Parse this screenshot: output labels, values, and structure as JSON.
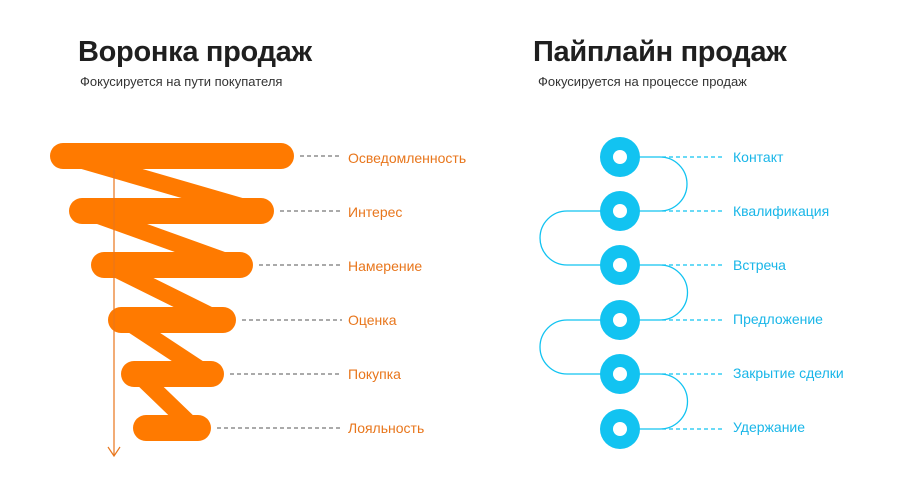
{
  "funnel": {
    "title": "Воронка продаж",
    "subtitle": "Фокусируется на пути покупателя",
    "color": "#ff7a00",
    "stages": [
      "Осведомленность",
      "Интерес",
      "Намерение",
      "Оценка",
      "Покупка",
      "Лояльность"
    ]
  },
  "pipeline": {
    "title": "Пайплайн продаж",
    "subtitle": "Фокусируется на процессе продаж",
    "color": "#12c3f1",
    "stages": [
      "Контакт",
      "Квалификация",
      "Встреча",
      "Предложение",
      "Закрытие сделки",
      "Удержание"
    ]
  }
}
